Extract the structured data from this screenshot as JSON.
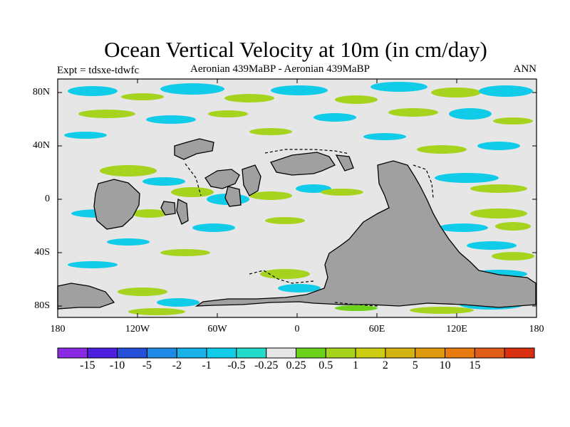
{
  "title": "Ocean Vertical Velocity at 10m (in cm/day)",
  "subtitle_left": "Expt = tdsxe-tdwfc",
  "subtitle_center": "Aeronian 439MaBP - Aeronian 439MaBP",
  "subtitle_right": "ANN",
  "y_axis_labels": [
    "80N",
    "40N",
    "0",
    "40S",
    "80S"
  ],
  "x_axis_labels": [
    "180",
    "120W",
    "60W",
    "0",
    "60E",
    "120E",
    "180"
  ],
  "colorbar": {
    "colors": [
      "#8a2be2",
      "#4b1ee0",
      "#2550d8",
      "#1c8ae6",
      "#18b0e8",
      "#10cce8",
      "#20dcc8",
      "#e6e6e6",
      "#6cd21a",
      "#a6d41e",
      "#cccc10",
      "#d4b410",
      "#e09a10",
      "#e87a10",
      "#e05c18",
      "#d83010"
    ],
    "labels": [
      "-15",
      "-10",
      "-5",
      "-2",
      "-1",
      "-0.5",
      "-0.25",
      "0.25",
      "0.5",
      "1",
      "2",
      "5",
      "10",
      "15"
    ]
  },
  "map_colors": {
    "background": "#e6e6e6",
    "land": "#a0a0a0",
    "positive": "#a6d41e",
    "positive_strong": "#6cd21a",
    "negative": "#10cce8",
    "negative_strong": "#18b0e8"
  }
}
